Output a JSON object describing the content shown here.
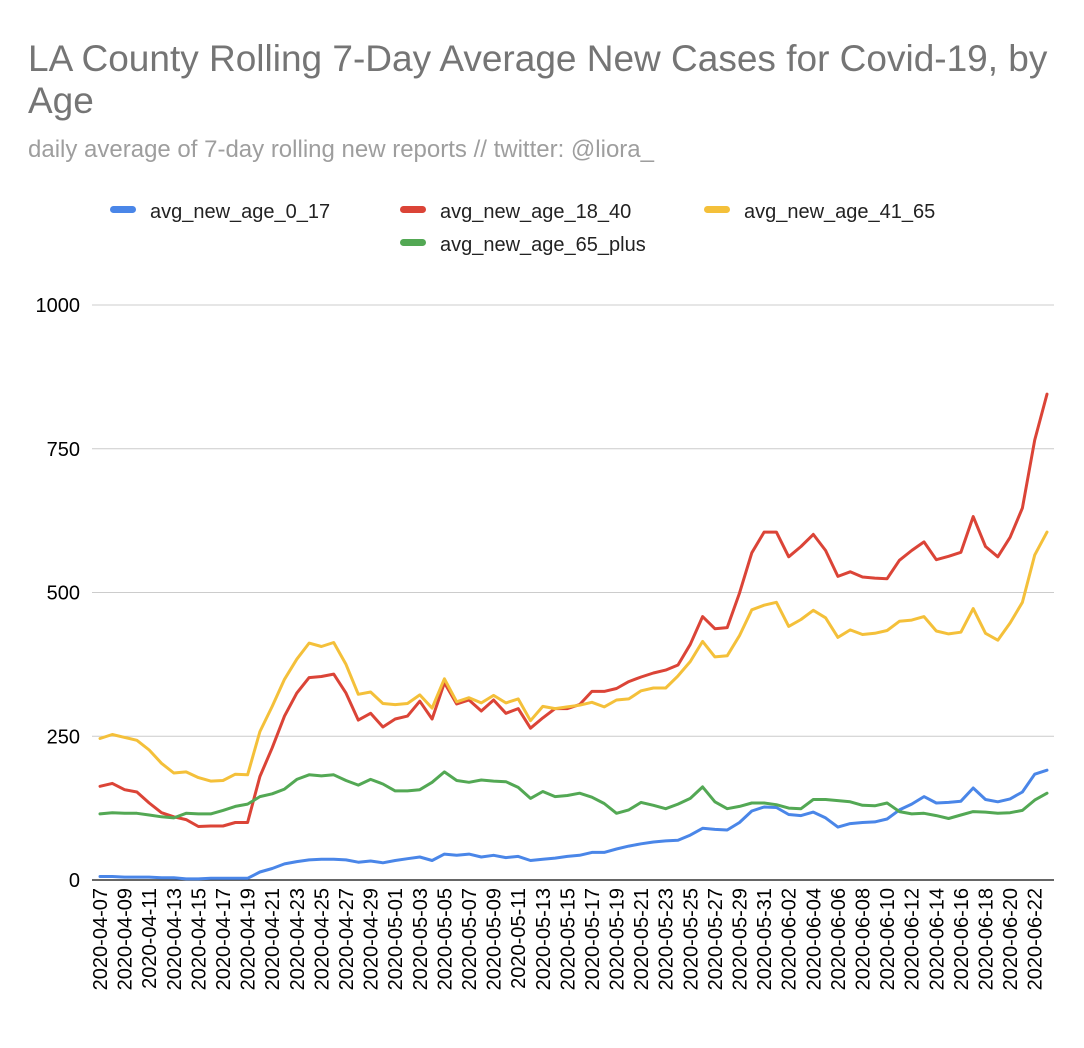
{
  "chart_data": {
    "type": "line",
    "title": "LA County Rolling 7-Day Average New Cases for Covid-19, by Age",
    "subtitle": "daily average of 7-day rolling new reports // twitter: @liora_",
    "xlabel": "",
    "ylabel": "",
    "ylim": [
      0,
      1000
    ],
    "yticks": [
      "0",
      "250",
      "500",
      "750",
      "1000"
    ],
    "ytick_values": [
      0,
      250,
      500,
      750,
      1000
    ],
    "grid": true,
    "legend_position": "top",
    "x_tick_labels": [
      "2020-04-07",
      "2020-04-09",
      "2020-04-11",
      "2020-04-13",
      "2020-04-15",
      "2020-04-17",
      "2020-04-19",
      "2020-04-21",
      "2020-04-23",
      "2020-04-25",
      "2020-04-27",
      "2020-04-29",
      "2020-05-01",
      "2020-05-03",
      "2020-05-05",
      "2020-05-07",
      "2020-05-09",
      "2020-05-11",
      "2020-05-13",
      "2020-05-15",
      "2020-05-17",
      "2020-05-19",
      "2020-05-21",
      "2020-05-23",
      "2020-05-25",
      "2020-05-27",
      "2020-05-29",
      "2020-05-31",
      "2020-06-02",
      "2020-06-04",
      "2020-06-06",
      "2020-06-08",
      "2020-06-10",
      "2020-06-12",
      "2020-06-14",
      "2020-06-16",
      "2020-06-18",
      "2020-06-20",
      "2020-06-22"
    ],
    "series": [
      {
        "name": "avg_new_age_0_17",
        "color": "#4a86e8",
        "values": [
          6,
          6,
          5,
          5,
          5,
          4,
          4,
          2,
          2,
          3,
          3,
          3,
          3,
          14,
          20,
          28,
          32,
          35,
          36,
          36,
          35,
          31,
          33,
          30,
          34,
          37,
          40,
          34,
          45,
          43,
          45,
          40,
          43,
          39,
          41,
          34,
          36,
          38,
          41,
          43,
          48,
          48,
          54,
          59,
          63,
          66,
          68,
          69,
          78,
          90,
          88,
          87,
          100,
          120,
          127,
          126,
          114,
          112,
          118,
          108,
          92,
          98,
          100,
          101,
          106,
          122,
          132,
          145,
          134,
          135,
          137,
          160,
          140,
          136,
          141,
          153,
          184,
          191
        ]
      },
      {
        "name": "avg_new_age_18_40",
        "color": "#db4437",
        "values": [
          163,
          168,
          157,
          153,
          134,
          117,
          110,
          105,
          93,
          94,
          94,
          100,
          100,
          180,
          230,
          285,
          325,
          352,
          354,
          358,
          325,
          278,
          290,
          266,
          280,
          285,
          311,
          280,
          343,
          306,
          313,
          294,
          313,
          290,
          298,
          264,
          282,
          298,
          298,
          305,
          328,
          328,
          333,
          345,
          353,
          360,
          365,
          374,
          410,
          458,
          437,
          439,
          499,
          569,
          605,
          605,
          562,
          580,
          601,
          573,
          528,
          536,
          527,
          525,
          524,
          556,
          573,
          588,
          557,
          563,
          570,
          632,
          580,
          562,
          596,
          647,
          765,
          845
        ]
      },
      {
        "name": "avg_new_age_41_65",
        "color": "#f4c03a",
        "values": [
          246,
          253,
          248,
          243,
          226,
          203,
          186,
          188,
          178,
          172,
          173,
          184,
          183,
          258,
          302,
          349,
          384,
          412,
          406,
          413,
          375,
          323,
          327,
          307,
          305,
          307,
          322,
          299,
          350,
          310,
          317,
          308,
          321,
          308,
          315,
          277,
          302,
          298,
          301,
          304,
          309,
          301,
          313,
          315,
          329,
          334,
          334,
          355,
          380,
          415,
          388,
          390,
          425,
          470,
          478,
          483,
          441,
          453,
          469,
          456,
          422,
          435,
          427,
          429,
          434,
          450,
          452,
          458,
          433,
          428,
          431,
          472,
          429,
          417,
          447,
          483,
          565,
          605
        ]
      },
      {
        "name": "avg_new_age_65_plus",
        "color": "#53a854",
        "values": [
          115,
          117,
          116,
          116,
          113,
          110,
          108,
          116,
          115,
          115,
          121,
          128,
          132,
          145,
          150,
          158,
          175,
          183,
          181,
          183,
          173,
          165,
          175,
          167,
          155,
          155,
          157,
          170,
          188,
          173,
          170,
          174,
          172,
          171,
          161,
          142,
          154,
          145,
          147,
          151,
          144,
          133,
          116,
          122,
          135,
          130,
          124,
          132,
          142,
          162,
          136,
          124,
          128,
          134,
          134,
          131,
          125,
          124,
          140,
          140,
          138,
          136,
          130,
          129,
          134,
          119,
          115,
          116,
          112,
          107,
          113,
          119,
          118,
          116,
          117,
          121,
          139,
          151
        ]
      }
    ]
  }
}
